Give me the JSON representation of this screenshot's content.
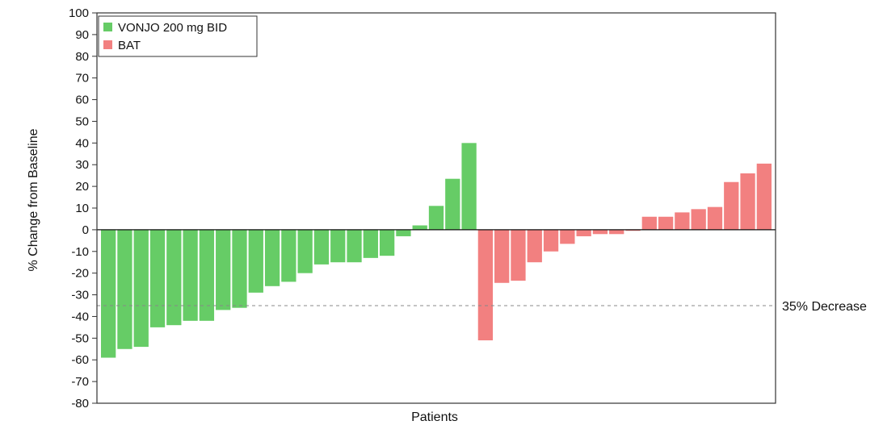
{
  "chart_data": {
    "type": "bar",
    "xlabel": "Patients",
    "ylabel": "% Change from Baseline",
    "ylim": [
      -80,
      100
    ],
    "yticks": [
      100,
      90,
      80,
      70,
      60,
      50,
      40,
      30,
      20,
      10,
      0,
      -10,
      -20,
      -30,
      -40,
      -50,
      -60,
      -70,
      -80
    ],
    "grid": false,
    "legend": {
      "position": "top-left",
      "entries": [
        "VONJO 200 mg BID",
        "BAT"
      ]
    },
    "series": [
      {
        "name": "VONJO 200 mg BID",
        "color": "#66cc66",
        "values": [
          -59,
          -55,
          -54,
          -45,
          -44,
          -42,
          -42,
          -37,
          -36,
          -29,
          -26,
          -24,
          -20,
          -16,
          -15,
          -15,
          -13,
          -12,
          -3,
          2,
          11,
          23.5,
          40
        ]
      },
      {
        "name": "BAT",
        "color": "#f28080",
        "values": [
          -51,
          -24.5,
          -23.5,
          -15,
          -10,
          -6.5,
          -3,
          -2,
          -2,
          -0.5,
          6,
          6,
          8,
          9.5,
          10.5,
          22,
          26,
          30.5
        ]
      }
    ],
    "reference_line": {
      "y": -35,
      "label": "35% Decrease",
      "style": "dashed"
    }
  }
}
